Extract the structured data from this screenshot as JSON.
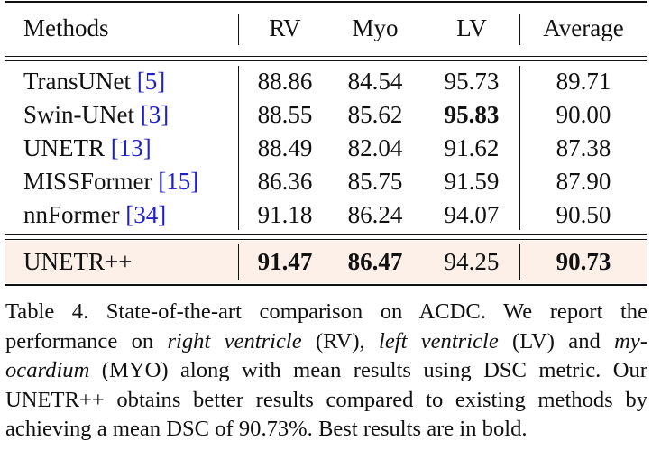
{
  "table": {
    "headers": [
      "Methods",
      "RV",
      "Myo",
      "LV",
      "Average"
    ],
    "rows": [
      {
        "method": "TransUNet",
        "ref": "5",
        "rv": "88.86",
        "myo": "84.54",
        "lv": "95.73",
        "avg": "89.71"
      },
      {
        "method": "Swin-UNet",
        "ref": "3",
        "rv": "88.55",
        "myo": "85.62",
        "lv": "95.83",
        "avg": "90.00"
      },
      {
        "method": "UNETR",
        "ref": "13",
        "rv": "88.49",
        "myo": "82.04",
        "lv": "91.62",
        "avg": "87.38"
      },
      {
        "method": "MISSFormer",
        "ref": "15",
        "rv": "86.36",
        "myo": "85.75",
        "lv": "91.59",
        "avg": "87.90"
      },
      {
        "method": "nnFormer",
        "ref": "34",
        "rv": "91.18",
        "myo": "86.24",
        "lv": "94.07",
        "avg": "90.50"
      }
    ],
    "highlight_row": {
      "method": "UNETR++",
      "rv": "91.47",
      "myo": "86.47",
      "lv": "94.25",
      "avg": "90.73"
    },
    "highlight_color": "#fdf0e9",
    "ref_color": "#2020c8"
  },
  "caption": {
    "l1": "Table 4.  State-of-the-art comparison on ACDC. We report the",
    "l2a": "performance on ",
    "l2b": "right ventricle",
    "l2c": " (RV), ",
    "l2d": "left ventricle",
    "l2e": " (LV) and ",
    "l2f": "my-",
    "l3a": "ocardium",
    "l3b": " (MYO) along with mean results using DSC metric. Our",
    "l4": "UNETR++ obtains better results compared to existing methods by",
    "l5": "achieving a mean DSC of 90.73%. Best results are in bold."
  }
}
